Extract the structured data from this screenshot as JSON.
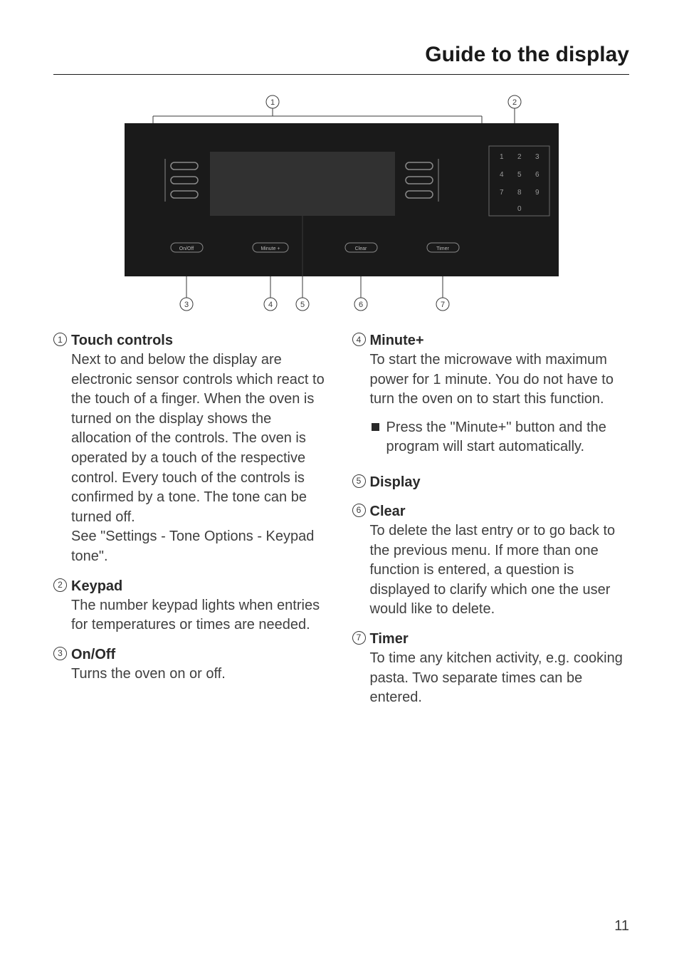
{
  "title": "Guide to the display",
  "page_number": "11",
  "diagram": {
    "bg": "#1a1a1a",
    "btn_labels": [
      "On/Off",
      "Minute +",
      "Clear",
      "Timer"
    ],
    "keypad": [
      "1",
      "2",
      "3",
      "4",
      "5",
      "6",
      "7",
      "8",
      "9",
      "0"
    ],
    "callouts_top": [
      "1",
      "2"
    ],
    "callouts_bottom": [
      "3",
      "4",
      "5",
      "6",
      "7"
    ]
  },
  "left": [
    {
      "num": "1",
      "title": "Touch controls",
      "desc": "Next to and below the display are electronic sensor controls which react to the touch of a finger. When the oven is turned on the display shows the allocation of the controls. The oven is operated by a touch of the respective control. Every touch of the controls is confirmed by a tone. The tone can be turned off.\nSee \"Settings - Tone Options - Keypad tone\"."
    },
    {
      "num": "2",
      "title": "Keypad",
      "desc": "The number keypad lights when entries for temperatures or times are needed."
    },
    {
      "num": "3",
      "title": "On/Off",
      "desc": "Turns the oven on or off."
    }
  ],
  "right": [
    {
      "num": "4",
      "title": "Minute+",
      "desc": "To start the microwave with maximum power for 1 minute. You do not have to turn the oven on to start this function.",
      "bullet": "Press the \"Minute+\" button and the program will start automatically."
    },
    {
      "num": "5",
      "title": "Display",
      "desc": ""
    },
    {
      "num": "6",
      "title": "Clear",
      "desc": "To delete the last entry or to go back to the previous menu. If more than one function is entered, a question is displayed to clarify which one the user would like to delete."
    },
    {
      "num": "7",
      "title": "Timer",
      "desc": "To time any kitchen activity, e.g. cooking pasta. Two separate times can be entered."
    }
  ]
}
